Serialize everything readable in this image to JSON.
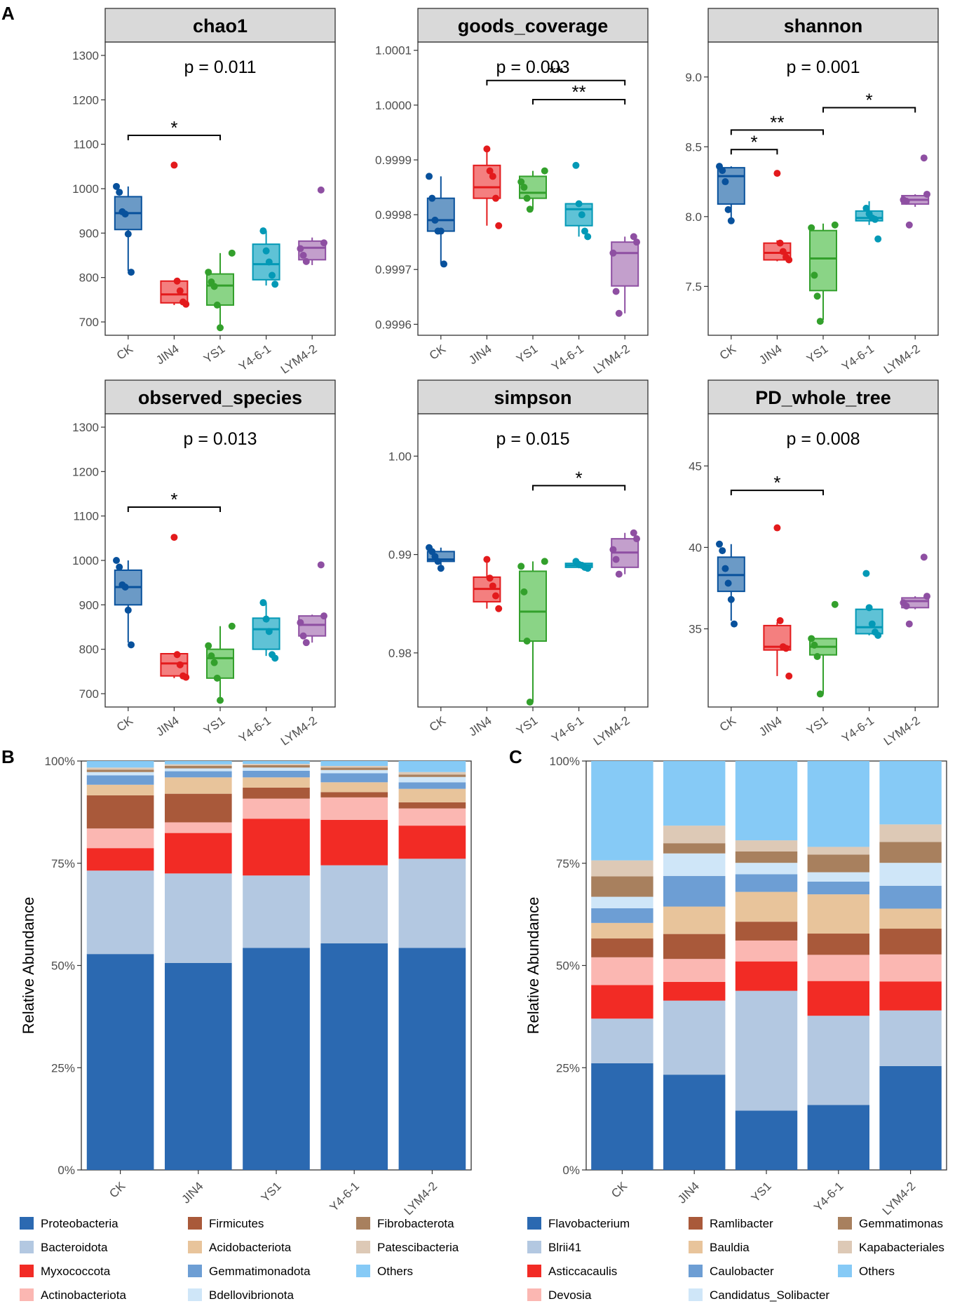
{
  "panel_labels": {
    "A": "A",
    "B": "B",
    "C": "C"
  },
  "groups": [
    "CK",
    "JIN4",
    "YS1",
    "Y4-6-1",
    "LYM4-2"
  ],
  "group_colors": {
    "stroke": [
      "#08519c",
      "#e31a1c",
      "#33a02c",
      "#0399b6",
      "#8e4fa2"
    ],
    "fill": [
      "#6b9ac6",
      "#f47f7f",
      "#8ad486",
      "#5fc2d6",
      "#c39fcc"
    ]
  },
  "y_axis_label": "Relative Abundance",
  "chart_data": [
    {
      "id": "chao1",
      "type": "box",
      "title": "chao1",
      "p_label": "p = 0.011",
      "ylim": [
        670,
        1330
      ],
      "yticks": [
        700,
        800,
        900,
        1000,
        1100,
        1200,
        1300
      ],
      "tick_labels": [
        "700",
        "800",
        "900",
        "1000",
        "1100",
        "1200",
        "1300"
      ],
      "categories": [
        "CK",
        "JIN4",
        "YS1",
        "Y4-6-1",
        "LYM4-2"
      ],
      "boxes": [
        {
          "q1": 908,
          "median": 945,
          "q3": 982,
          "min": 815,
          "max": 1005,
          "points": [
            1005,
            992,
            948,
            943,
            898,
            812
          ]
        },
        {
          "q1": 743,
          "median": 762,
          "q3": 792,
          "min": 738,
          "max": 792,
          "points": [
            1053,
            792,
            770,
            745,
            740
          ]
        },
        {
          "q1": 738,
          "median": 782,
          "q3": 808,
          "min": 690,
          "max": 855,
          "points": [
            855,
            812,
            790,
            780,
            738,
            687
          ]
        },
        {
          "q1": 795,
          "median": 830,
          "q3": 875,
          "min": 782,
          "max": 905,
          "points": [
            905,
            860,
            835,
            805,
            785
          ]
        },
        {
          "q1": 840,
          "median": 867,
          "q3": 882,
          "min": 828,
          "max": 890,
          "points": [
            997,
            878,
            865,
            850,
            836
          ]
        }
      ],
      "brackets": [
        {
          "from": 0,
          "to": 2,
          "y": 1120,
          "label": "*"
        }
      ]
    },
    {
      "id": "goods_coverage",
      "type": "box",
      "title": "goods_coverage",
      "p_label": "p = 0.003",
      "ylim": [
        0.99958,
        1.000115
      ],
      "yticks": [
        0.9996,
        0.9997,
        0.9998,
        0.9999,
        1.0,
        1.0001
      ],
      "tick_labels": [
        "0.9996",
        "0.9997",
        "0.9998",
        "0.9999",
        "1.0000",
        "1.0001"
      ],
      "categories": [
        "CK",
        "JIN4",
        "YS1",
        "Y4-6-1",
        "LYM4-2"
      ],
      "boxes": [
        {
          "q1": 0.99977,
          "median": 0.99979,
          "q3": 0.99983,
          "min": 0.99971,
          "max": 0.99987,
          "points": [
            0.99987,
            0.99983,
            0.99979,
            0.99977,
            0.99977,
            0.99971
          ]
        },
        {
          "q1": 0.99983,
          "median": 0.99985,
          "q3": 0.99989,
          "min": 0.99978,
          "max": 0.99992,
          "points": [
            0.99992,
            0.99988,
            0.99987,
            0.99983,
            0.99978
          ]
        },
        {
          "q1": 0.99983,
          "median": 0.99984,
          "q3": 0.99987,
          "min": 0.99981,
          "max": 0.99988,
          "points": [
            0.99988,
            0.99986,
            0.99985,
            0.99983,
            0.99981
          ]
        },
        {
          "q1": 0.99978,
          "median": 0.99981,
          "q3": 0.99982,
          "min": 0.99976,
          "max": 0.99982,
          "points": [
            0.99989,
            0.99982,
            0.9998,
            0.99977,
            0.99976
          ]
        },
        {
          "q1": 0.99967,
          "median": 0.99973,
          "q3": 0.99975,
          "min": 0.99962,
          "max": 0.99976,
          "points": [
            0.99976,
            0.99975,
            0.99973,
            0.99966,
            0.99962
          ]
        }
      ],
      "brackets": [
        {
          "from": 1,
          "to": 4,
          "y": 1.000045,
          "label": "**"
        },
        {
          "from": 2,
          "to": 4,
          "y": 1.00001,
          "label": "**"
        }
      ]
    },
    {
      "id": "shannon",
      "type": "box",
      "title": "shannon",
      "p_label": "p = 0.001",
      "ylim": [
        7.15,
        9.25
      ],
      "yticks": [
        7.5,
        8.0,
        8.5,
        9.0
      ],
      "tick_labels": [
        "7.5",
        "8.0",
        "8.5",
        "9.0"
      ],
      "categories": [
        "CK",
        "JIN4",
        "YS1",
        "Y4-6-1",
        "LYM4-2"
      ],
      "boxes": [
        {
          "q1": 8.09,
          "median": 8.29,
          "q3": 8.35,
          "min": 7.99,
          "max": 8.36,
          "points": [
            8.36,
            8.33,
            8.25,
            8.05,
            7.97
          ]
        },
        {
          "q1": 7.69,
          "median": 7.74,
          "q3": 7.81,
          "min": 7.68,
          "max": 7.83,
          "points": [
            8.31,
            7.81,
            7.75,
            7.71,
            7.69
          ]
        },
        {
          "q1": 7.47,
          "median": 7.7,
          "q3": 7.9,
          "min": 7.26,
          "max": 7.95,
          "points": [
            7.94,
            7.92,
            7.58,
            7.43,
            7.25
          ]
        },
        {
          "q1": 7.97,
          "median": 7.99,
          "q3": 8.04,
          "min": 7.94,
          "max": 8.11,
          "points": [
            8.06,
            8.02,
            7.99,
            7.98,
            7.84
          ]
        },
        {
          "q1": 8.09,
          "median": 8.12,
          "q3": 8.15,
          "min": 8.07,
          "max": 8.16,
          "points": [
            8.42,
            8.16,
            8.12,
            8.11,
            7.94
          ]
        }
      ],
      "brackets": [
        {
          "from": 0,
          "to": 1,
          "y": 8.48,
          "label": "*"
        },
        {
          "from": 0,
          "to": 2,
          "y": 8.62,
          "label": "**"
        },
        {
          "from": 2,
          "to": 4,
          "y": 8.78,
          "label": "*"
        }
      ]
    },
    {
      "id": "observed_species",
      "type": "box",
      "title": "observed_species",
      "p_label": "p = 0.013",
      "ylim": [
        670,
        1330
      ],
      "yticks": [
        700,
        800,
        900,
        1000,
        1100,
        1200,
        1300
      ],
      "tick_labels": [
        "700",
        "800",
        "900",
        "1000",
        "1100",
        "1200",
        "1300"
      ],
      "categories": [
        "CK",
        "JIN4",
        "YS1",
        "Y4-6-1",
        "LYM4-2"
      ],
      "boxes": [
        {
          "q1": 900,
          "median": 940,
          "q3": 978,
          "min": 815,
          "max": 1000,
          "points": [
            1000,
            985,
            945,
            940,
            888,
            810
          ]
        },
        {
          "q1": 740,
          "median": 768,
          "q3": 790,
          "min": 735,
          "max": 790,
          "points": [
            1052,
            788,
            765,
            740,
            737
          ]
        },
        {
          "q1": 735,
          "median": 780,
          "q3": 800,
          "min": 690,
          "max": 852,
          "points": [
            852,
            808,
            785,
            770,
            735,
            685
          ]
        },
        {
          "q1": 800,
          "median": 845,
          "q3": 870,
          "min": 785,
          "max": 905,
          "points": [
            905,
            868,
            840,
            788,
            780
          ]
        },
        {
          "q1": 830,
          "median": 855,
          "q3": 875,
          "min": 815,
          "max": 878,
          "points": [
            990,
            875,
            860,
            830,
            815
          ]
        }
      ],
      "brackets": [
        {
          "from": 0,
          "to": 2,
          "y": 1120,
          "label": "*"
        }
      ]
    },
    {
      "id": "simpson",
      "type": "box",
      "title": "simpson",
      "p_label": "p = 0.015",
      "ylim": [
        0.9745,
        1.0043
      ],
      "yticks": [
        0.98,
        0.99,
        1.0
      ],
      "tick_labels": [
        "0.98",
        "0.99",
        "1.00"
      ],
      "categories": [
        "CK",
        "JIN4",
        "YS1",
        "Y4-6-1",
        "LYM4-2"
      ],
      "boxes": [
        {
          "q1": 0.9893,
          "median": 0.9895,
          "q3": 0.9903,
          "min": 0.9887,
          "max": 0.9907,
          "points": [
            0.9907,
            0.9903,
            0.9898,
            0.9893,
            0.9886
          ]
        },
        {
          "q1": 0.9852,
          "median": 0.9865,
          "q3": 0.9877,
          "min": 0.9845,
          "max": 0.9894,
          "points": [
            0.9895,
            0.9876,
            0.9868,
            0.9858,
            0.9845
          ]
        },
        {
          "q1": 0.9812,
          "median": 0.9842,
          "q3": 0.9883,
          "min": 0.975,
          "max": 0.9893,
          "points": [
            0.9893,
            0.9888,
            0.9862,
            0.9812,
            0.975
          ]
        },
        {
          "q1": 0.9887,
          "median": 0.9889,
          "q3": 0.9891,
          "min": 0.9886,
          "max": 0.9893,
          "points": [
            0.9893,
            0.989,
            0.9889,
            0.9887,
            0.9886
          ]
        },
        {
          "q1": 0.9887,
          "median": 0.9902,
          "q3": 0.9916,
          "min": 0.988,
          "max": 0.9922,
          "points": [
            0.9922,
            0.9916,
            0.9905,
            0.9895,
            0.988
          ]
        }
      ],
      "brackets": [
        {
          "from": 2,
          "to": 4,
          "y": 0.997,
          "label": "*"
        }
      ]
    },
    {
      "id": "PD_whole_tree",
      "type": "box",
      "title": "PD_whole_tree",
      "p_label": "p = 0.008",
      "ylim": [
        30.2,
        48.2
      ],
      "yticks": [
        35,
        40,
        45
      ],
      "tick_labels": [
        "35",
        "40",
        "45"
      ],
      "categories": [
        "CK",
        "JIN4",
        "YS1",
        "Y4-6-1",
        "LYM4-2"
      ],
      "boxes": [
        {
          "q1": 37.3,
          "median": 38.3,
          "q3": 39.4,
          "min": 35.5,
          "max": 40.2,
          "points": [
            40.2,
            39.8,
            38.7,
            37.8,
            36.8,
            35.3
          ]
        },
        {
          "q1": 33.7,
          "median": 33.9,
          "q3": 35.2,
          "min": 32.1,
          "max": 35.4,
          "points": [
            41.2,
            35.5,
            33.9,
            33.8,
            32.1
          ]
        },
        {
          "q1": 33.4,
          "median": 33.9,
          "q3": 34.4,
          "min": 31.0,
          "max": 34.4,
          "points": [
            36.5,
            34.4,
            34.0,
            33.3,
            31.0
          ]
        },
        {
          "q1": 34.7,
          "median": 35.1,
          "q3": 36.2,
          "min": 34.6,
          "max": 36.3,
          "points": [
            38.4,
            36.3,
            35.3,
            34.8,
            34.6
          ]
        },
        {
          "q1": 36.3,
          "median": 36.7,
          "q3": 36.9,
          "min": 36.2,
          "max": 37.0,
          "points": [
            39.4,
            37.0,
            36.6,
            36.4,
            35.3
          ]
        }
      ],
      "brackets": [
        {
          "from": 0,
          "to": 2,
          "y": 43.5,
          "label": "*"
        }
      ]
    },
    {
      "id": "phylum",
      "type": "stacked_bar",
      "title": "",
      "ylabel": "Relative Abundance",
      "ylim": [
        0,
        100
      ],
      "tick_labels": [
        "0%",
        "25%",
        "50%",
        "75%",
        "100%"
      ],
      "categories": [
        "CK",
        "JIN4",
        "YS1",
        "Y4-6-1",
        "LYM4-2"
      ],
      "series": [
        {
          "name": "Proteobacteria",
          "color": "#2b69b1",
          "values": [
            52.8,
            50.6,
            54.3,
            55.4,
            54.3
          ]
        },
        {
          "name": "Bacteroidota",
          "color": "#b3c8e1",
          "values": [
            20.4,
            21.9,
            17.7,
            19.1,
            21.8
          ]
        },
        {
          "name": "Myxococcota",
          "color": "#f22b25",
          "values": [
            5.5,
            9.9,
            13.9,
            11.1,
            8.1
          ]
        },
        {
          "name": "Actinobacteriota",
          "color": "#fbb7b2",
          "values": [
            4.8,
            2.6,
            4.9,
            5.5,
            4.2
          ]
        },
        {
          "name": "Firmicutes",
          "color": "#a9593a",
          "values": [
            8.1,
            7.0,
            2.7,
            1.3,
            1.5
          ]
        },
        {
          "name": "Acidobacteriota",
          "color": "#e8c49b",
          "values": [
            2.6,
            4.0,
            2.5,
            2.4,
            3.3
          ]
        },
        {
          "name": "Gemmatimonadota",
          "color": "#6d9ed4",
          "values": [
            2.3,
            1.5,
            1.6,
            2.2,
            1.6
          ]
        },
        {
          "name": "Bdellovibrionota",
          "color": "#cfe6f8",
          "values": [
            0.8,
            0.7,
            0.8,
            0.8,
            1.3
          ]
        },
        {
          "name": "Fibrobacterota",
          "color": "#a8805e",
          "values": [
            0.6,
            0.6,
            0.6,
            0.6,
            0.6
          ]
        },
        {
          "name": "Patescibacteria",
          "color": "#ddc9b6",
          "values": [
            0.5,
            0.4,
            0.3,
            0.4,
            0.6
          ]
        },
        {
          "name": "Others",
          "color": "#86caf6",
          "values": [
            1.6,
            0.8,
            0.7,
            1.2,
            2.7
          ]
        }
      ],
      "legend_rows": [
        [
          "Proteobacteria",
          "Firmicutes",
          "Fibrobacterota"
        ],
        [
          "Bacteroidota",
          "Acidobacteriota",
          "Patescibacteria"
        ],
        [
          "Myxococcota",
          "Gemmatimonadota",
          "Others"
        ],
        [
          "Actinobacteriota",
          "Bdellovibrionota",
          null
        ]
      ]
    },
    {
      "id": "genus",
      "type": "stacked_bar",
      "title": "",
      "ylabel": "Relative Abundance",
      "ylim": [
        0,
        100
      ],
      "tick_labels": [
        "0%",
        "25%",
        "50%",
        "75%",
        "100%"
      ],
      "categories": [
        "CK",
        "JIN4",
        "YS1",
        "Y4-6-1",
        "LYM4-2"
      ],
      "series": [
        {
          "name": "Flavobacterium",
          "color": "#2b69b1",
          "values": [
            26.1,
            23.3,
            14.5,
            15.9,
            25.4
          ]
        },
        {
          "name": "Blrii41",
          "color": "#b3c8e1",
          "values": [
            10.9,
            18.1,
            29.3,
            21.8,
            13.6
          ]
        },
        {
          "name": "Asticcacaulis",
          "color": "#f22b25",
          "values": [
            8.2,
            4.6,
            7.2,
            8.5,
            7.1
          ]
        },
        {
          "name": "Devosia",
          "color": "#fbb7b2",
          "values": [
            6.8,
            5.6,
            5.1,
            6.4,
            6.6
          ]
        },
        {
          "name": "Ramlibacter",
          "color": "#a9593a",
          "values": [
            4.6,
            6.1,
            4.6,
            5.2,
            6.3
          ]
        },
        {
          "name": "Bauldia",
          "color": "#e8c49b",
          "values": [
            3.8,
            6.7,
            7.3,
            9.6,
            4.9
          ]
        },
        {
          "name": "Caulobacter",
          "color": "#6d9ed4",
          "values": [
            3.6,
            7.5,
            4.3,
            3.1,
            5.6
          ]
        },
        {
          "name": "Candidatus_Solibacter",
          "color": "#cfe6f8",
          "values": [
            2.8,
            5.5,
            2.8,
            2.3,
            5.6
          ]
        },
        {
          "name": "Gemmatimonas",
          "color": "#a8805e",
          "values": [
            5.0,
            2.5,
            2.8,
            4.3,
            5.1
          ]
        },
        {
          "name": "Kapabacteriales",
          "color": "#ddc9b6",
          "values": [
            3.9,
            4.3,
            2.7,
            1.9,
            4.3
          ]
        },
        {
          "name": "Others",
          "color": "#86caf6",
          "values": [
            24.3,
            15.8,
            19.4,
            21.0,
            15.5
          ]
        }
      ],
      "legend_rows": [
        [
          "Flavobacterium",
          "Ramlibacter",
          "Gemmatimonas"
        ],
        [
          "Blrii41",
          "Bauldia",
          "Kapabacteriales"
        ],
        [
          "Asticcacaulis",
          "Caulobacter",
          "Others"
        ],
        [
          "Devosia",
          "Candidatus_Solibacter",
          null
        ]
      ]
    }
  ]
}
